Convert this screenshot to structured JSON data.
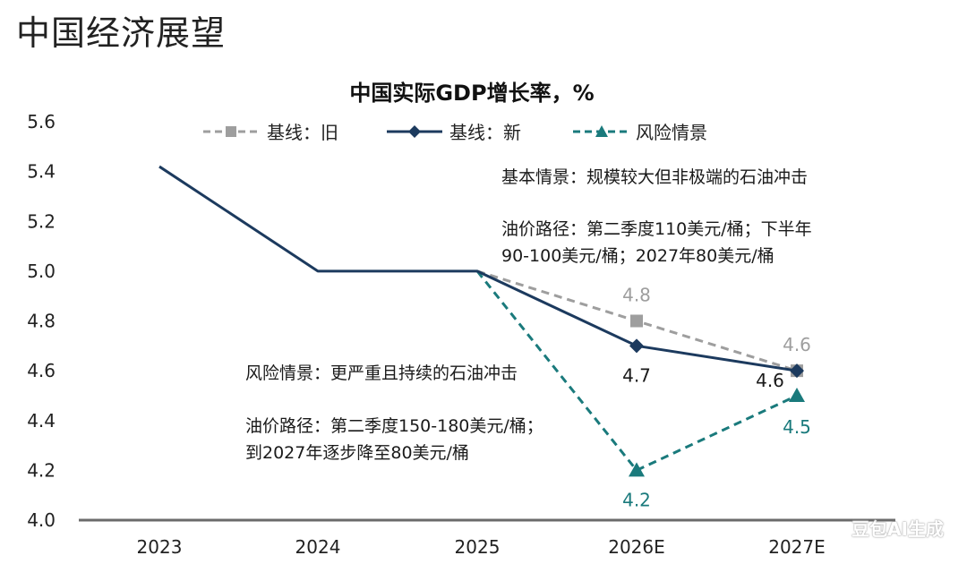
{
  "page": {
    "title": "中国经济展望",
    "watermark": "豆包AI生成"
  },
  "annotations": {
    "baseline_scenario": "基本情景：规模较大但非极端的石油冲击",
    "baseline_path_line1": "油价路径：第二季度110美元/桶；下半年",
    "baseline_path_line2": "90-100美元/桶；2027年80美元/桶",
    "risk_scenario": "风险情景：更严重且持续的石油冲击",
    "risk_path_line1": "油价路径：第二季度150-180美元/桶；",
    "risk_path_line2": "到2027年逐步降至80美元/桶"
  },
  "chart_data": {
    "type": "line",
    "title": "中国实际GDP增长率，%",
    "categories": [
      "2023",
      "2024",
      "2025",
      "2026E",
      "2027E"
    ],
    "ylim": [
      4.0,
      5.6
    ],
    "yticks": [
      "4.0",
      "4.2",
      "4.4",
      "4.6",
      "4.8",
      "5.0",
      "5.2",
      "5.4",
      "5.6"
    ],
    "legend_position": "top",
    "series": [
      {
        "name": "基线：旧",
        "color": "#9e9e9e",
        "dash": true,
        "marker": "square",
        "values": [
          null,
          null,
          5.0,
          4.8,
          4.6
        ],
        "labels": [
          null,
          null,
          null,
          "4.8",
          "4.6"
        ]
      },
      {
        "name": "基线：新",
        "color": "#1c3a5e",
        "dash": false,
        "marker": "diamond",
        "values": [
          5.42,
          5.0,
          5.0,
          4.7,
          4.6
        ],
        "labels": [
          null,
          null,
          null,
          "4.7",
          "4.6"
        ]
      },
      {
        "name": "风险情景",
        "color": "#1a7a7c",
        "dash": true,
        "marker": "triangle",
        "values": [
          null,
          null,
          5.0,
          4.2,
          4.5
        ],
        "labels": [
          null,
          null,
          null,
          "4.2",
          "4.5"
        ]
      }
    ]
  }
}
